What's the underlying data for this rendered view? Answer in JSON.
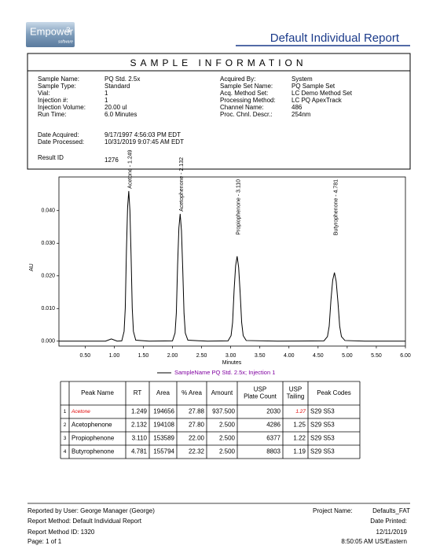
{
  "header": {
    "logo": "Empower",
    "logo_version": "3",
    "logo_sub": "software",
    "title": "Default Individual Report"
  },
  "sample_info": {
    "title": "SAMPLE INFORMATION",
    "left": [
      {
        "label": "Sample Name:",
        "value": "PQ Std. 2.5x"
      },
      {
        "label": "Sample Type:",
        "value": "Standard"
      },
      {
        "label": "Vial:",
        "value": "1"
      },
      {
        "label": "Injection #:",
        "value": "1"
      },
      {
        "label": "Injection Volume:",
        "value": "20.00 ul"
      },
      {
        "label": "Run Time:",
        "value": "6.0 Minutes"
      }
    ],
    "dates": [
      {
        "label": "Date Acquired:",
        "value": "9/17/1997 4:56:03 PM EDT"
      },
      {
        "label": "Date Processed:",
        "value": "10/31/2019 9:07:45 AM EDT"
      }
    ],
    "result": {
      "label": "Result ID",
      "value": "1276"
    },
    "right": [
      {
        "label": "Acquired By:",
        "value": "System"
      },
      {
        "label": "Sample Set Name:",
        "value": "PQ Sample Set"
      },
      {
        "label": "Acq. Method Set:",
        "value": "LC Demo Method Set"
      },
      {
        "label": "Processing Method:",
        "value": "LC PQ ApexTrack"
      },
      {
        "label": "Channel Name:",
        "value": "486"
      },
      {
        "label": "Proc. Chnl. Descr.:",
        "value": "254nm"
      }
    ]
  },
  "chart_data": {
    "type": "line",
    "x_label": "Minutes",
    "y_label": "AU",
    "xlim": [
      0.05,
      6.0
    ],
    "ylim": [
      -0.0015,
      0.0503
    ],
    "xticks": [
      {
        "value": 0.5,
        "label": "0.50"
      },
      {
        "value": 1.0,
        "label": "1.00"
      },
      {
        "value": 1.5,
        "label": "1.50"
      },
      {
        "value": 2.0,
        "label": "2.00"
      },
      {
        "value": 2.5,
        "label": "2.50"
      },
      {
        "value": 3.0,
        "label": "3.00"
      },
      {
        "value": 3.5,
        "label": "3.50"
      },
      {
        "value": 4.0,
        "label": "4.00"
      },
      {
        "value": 4.5,
        "label": "4.50"
      },
      {
        "value": 5.0,
        "label": "5.00"
      },
      {
        "value": 5.5,
        "label": "5.50"
      },
      {
        "value": 6.0,
        "label": "6.00"
      }
    ],
    "yticks": [
      {
        "value": 0.0,
        "label": "0.000"
      },
      {
        "value": 0.01,
        "label": "0.010"
      },
      {
        "value": 0.02,
        "label": "0.020"
      },
      {
        "value": 0.03,
        "label": "0.030"
      },
      {
        "value": 0.04,
        "label": "0.040"
      }
    ],
    "x": [
      0.05,
      0.85,
      0.95,
      1.05,
      1.129,
      1.169,
      1.189,
      1.209,
      1.229,
      1.249,
      1.269,
      1.289,
      1.309,
      1.329,
      1.369,
      1.6,
      2.0,
      2.044,
      2.066,
      2.088,
      2.11,
      2.132,
      2.154,
      2.176,
      2.198,
      2.22,
      2.264,
      2.6,
      2.954,
      3.006,
      3.032,
      3.058,
      3.084,
      3.11,
      3.136,
      3.162,
      3.188,
      3.214,
      3.266,
      3.8,
      4.601,
      4.661,
      4.691,
      4.721,
      4.751,
      4.781,
      4.811,
      4.841,
      4.871,
      4.901,
      4.961,
      5.3,
      6.0
    ],
    "series": [
      {
        "name": "SampleName PQ Std. 2.5x; Injection 1",
        "color": "#000000",
        "legend_text_color": "#8000a0",
        "values": [
          0,
          0,
          0.0007,
          0,
          0.0001,
          0.003,
          0.0101,
          0.0276,
          0.0409,
          0.046,
          0.04,
          0.0262,
          0.0101,
          0.003,
          0.0003,
          0,
          0.0001,
          0.0025,
          0.0086,
          0.0234,
          0.0347,
          0.039,
          0.0339,
          0.0222,
          0.0086,
          0.0025,
          0.0003,
          0,
          0.0001,
          0.0017,
          0.0057,
          0.0156,
          0.0231,
          0.026,
          0.0226,
          0.0148,
          0.0057,
          0.0017,
          0.0002,
          0,
          0.0001,
          0.0014,
          0.0046,
          0.0126,
          0.0187,
          0.021,
          0.0183,
          0.012,
          0.0046,
          0.0014,
          0.0002,
          0,
          0
        ]
      }
    ],
    "annotations": [
      {
        "text": "Acetone - 1.249",
        "x": 1.249,
        "y": 0.046
      },
      {
        "text": "Acetophenone - 2.132",
        "x": 2.132,
        "y": 0.039
      },
      {
        "text": "Propiophenone - 3.110",
        "x": 3.11,
        "y": 0.026
      },
      {
        "text": "Butyrophenone - 4.781",
        "x": 4.781,
        "y": 0.021
      }
    ]
  },
  "table": {
    "columns": [
      "",
      "Peak Name",
      "RT",
      "Area",
      "% Area",
      "Amount",
      "USP Plate Count",
      "USP Tailing",
      "Peak Codes"
    ],
    "rows": [
      [
        "1",
        "Acetone",
        "1.249",
        "194656",
        "27.88",
        "937.500",
        "2030",
        "1.27",
        "S29 S53"
      ],
      [
        "2",
        "Acetophenone",
        "2.132",
        "194108",
        "27.80",
        "2.500",
        "4286",
        "1.25",
        "S29 S53"
      ],
      [
        "3",
        "Propiophenone",
        "3.110",
        "153589",
        "22.00",
        "2.500",
        "6377",
        "1.22",
        "S29 S53"
      ],
      [
        "4",
        "Butyrophenone",
        "4.781",
        "155794",
        "22.32",
        "2.500",
        "8803",
        "1.19",
        "S29 S53"
      ]
    ]
  },
  "footer": {
    "reported_by": "Reported by User: George Manager (George)",
    "report_method": "Report Method: Default Individual Report",
    "report_method_id": "Report Method ID: 1320",
    "page": "Page: 1 of 1",
    "project_label": "Project Name:",
    "project_value": "Defaults_FAT",
    "date_printed_label": "Date Printed:",
    "date_printed": "12/11/2019",
    "time_printed": "8:50:05 AM US/Eastern"
  }
}
